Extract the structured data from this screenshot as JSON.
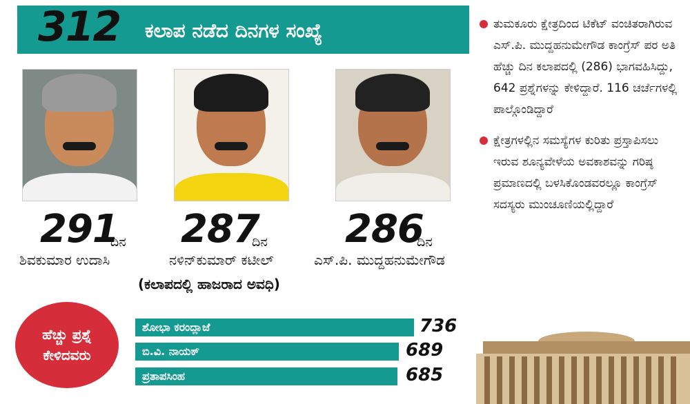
{
  "header": {
    "big_number": "312",
    "title": "ಕಲಾಪ ನಡೆದ ದಿನಗಳ ಸಂಖ್ಯೆ"
  },
  "members": [
    {
      "count": "291",
      "unit": "ದಿನ",
      "name": "ಶಿವಕುಮಾರ ಉದಾಸಿ"
    },
    {
      "count": "287",
      "unit": "ದಿನ",
      "name": "ನಳಿನ್‌ಕುಮಾರ್ ಕಟೀಲ್"
    },
    {
      "count": "286",
      "unit": "ದಿನ",
      "name": "ಎಸ್.ಪಿ. ಮುದ್ದಹನುಮೇಗೌಡ"
    }
  ],
  "attendance_note": "(ಕಲಾಪದಲ್ಲಿ ಹಾಜರಾದ ಅವಧಿ)",
  "bubble": {
    "line1": "ಹೆಚ್ಚು ಪ್ರಶ್ನೆ",
    "line2": "ಕೇಳಿದವರು"
  },
  "questions": [
    {
      "name": "ಶೋಭಾ ಕರಂದ್ಲಾಜೆ",
      "value": "736"
    },
    {
      "name": "ಬಿ.ವಿ. ನಾಯಕ್",
      "value": "689"
    },
    {
      "name": "ಪ್ರತಾಪಸಿಂಹ",
      "value": "685"
    }
  ],
  "bullets": [
    "ತುಮಕೂರು ಕ್ಷೇತ್ರದಿಂದ ಟಿಕೆಟ್ ವಂಚಿತರಾಗಿರುವ ಎಸ್.ಪಿ. ಮುದ್ದಹನುಮೇಗೌಡ ಕಾಂಗ್ರೆಸ್ ಪರ ಅತಿ ಹೆಚ್ಚು ದಿನ ಕಲಾಪದಲ್ಲಿ (286) ಭಾಗವಹಿಸಿದ್ದು, 642 ಪ್ರಶ್ನೆಗಳನ್ನು ಕೇಳಿದ್ದಾರೆ. 116 ಚರ್ಚೆಗಳಲ್ಲಿ ಪಾಲ್ಗೊಂಡಿದ್ದಾರೆ",
    "ಕ್ಷೇತ್ರಗಳಲ್ಲಿನ ಸಮಸ್ಯೆಗಳ ಕುರಿತು ಪ್ರಸ್ತಾಪಿಸಲು ಇರುವ ಶೂನ್ಯವೇಳೆಯ ಅವಕಾಶವನ್ನು ಗರಿಷ್ಠ ಪ್ರಮಾಣದಲ್ಲಿ ಬಳಸಿಕೊಂಡವರಲ್ಲೂ ಕಾಂಗ್ರೆಸ್ ಸದಸ್ಯರು ಮುಂಚೂಣಿಯಲ್ಲಿದ್ದಾರೆ"
  ],
  "colors": {
    "teal": "#159a92",
    "red": "#d62d3a",
    "text": "#111111"
  }
}
